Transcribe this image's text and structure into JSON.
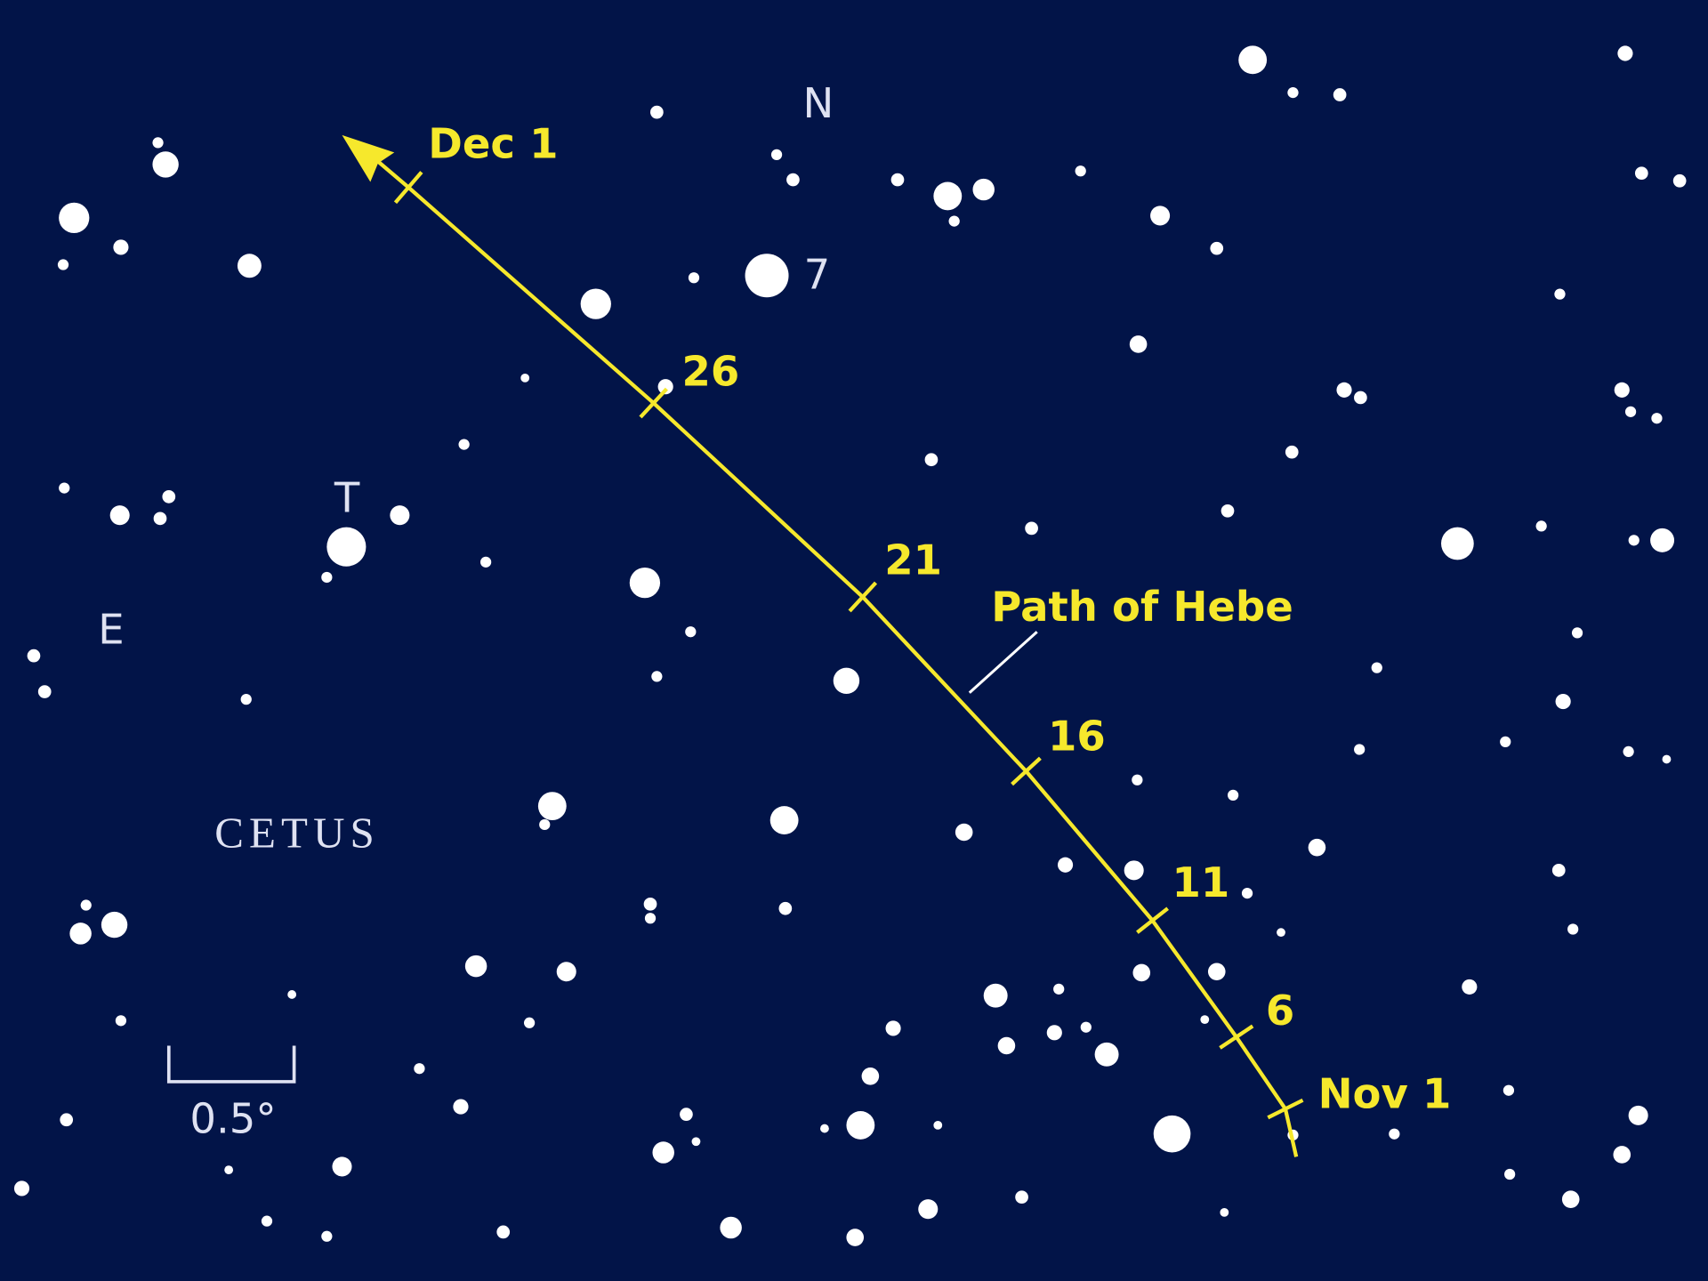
{
  "labels": {
    "north": "N",
    "east": "E",
    "star_t": "T",
    "star_7": "7",
    "constellation": "CETUS"
  },
  "path": {
    "label": "Path of Hebe",
    "dates": [
      "Dec 1",
      "26",
      "21",
      "16",
      "11",
      "6",
      "Nov 1"
    ]
  },
  "scale": {
    "label": "0.5°"
  }
}
